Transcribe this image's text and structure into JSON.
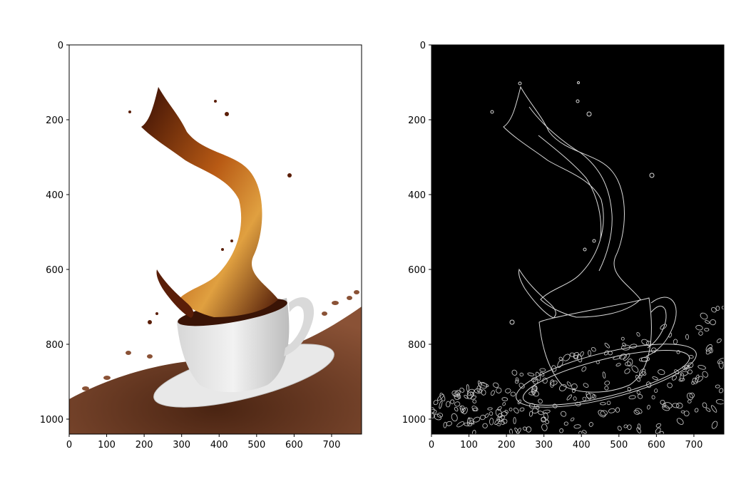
{
  "chart_data": [
    {
      "type": "image",
      "panel": "original",
      "description_visible": "photo of a coffee splash pouring into a white cup on a saucer over coffee beans",
      "xlim": [
        0,
        780
      ],
      "ylim": [
        1040,
        0
      ],
      "x_ticks": [
        "0",
        "100",
        "200",
        "300",
        "400",
        "500",
        "600",
        "700"
      ],
      "y_ticks": [
        "0",
        "200",
        "400",
        "600",
        "800",
        "1000"
      ],
      "x_tick_values": [
        0,
        100,
        200,
        300,
        400,
        500,
        600,
        700
      ],
      "y_tick_values": [
        0,
        200,
        400,
        600,
        800,
        1000
      ]
    },
    {
      "type": "image",
      "panel": "edges",
      "description_visible": "edge map (white outlines on black) of the same coffee splash image",
      "xlim": [
        0,
        780
      ],
      "ylim": [
        1040,
        0
      ],
      "x_ticks": [
        "0",
        "100",
        "200",
        "300",
        "400",
        "500",
        "600",
        "700"
      ],
      "y_ticks": [
        "0",
        "200",
        "400",
        "600",
        "800",
        "1000"
      ],
      "x_tick_values": [
        0,
        100,
        200,
        300,
        400,
        500,
        600,
        700
      ],
      "y_tick_values": [
        0,
        200,
        400,
        600,
        800,
        1000
      ]
    }
  ],
  "colors": {
    "splash_dark": "#3a0f05",
    "splash_mid": "#8a3a0c",
    "splash_light": "#d98a2b",
    "cup": "#e6e6e6",
    "cup_shadow": "#b9b9b9",
    "beans": "#6b3b22",
    "edge_bg": "#000000",
    "edge_line": "#d9d9d9"
  }
}
